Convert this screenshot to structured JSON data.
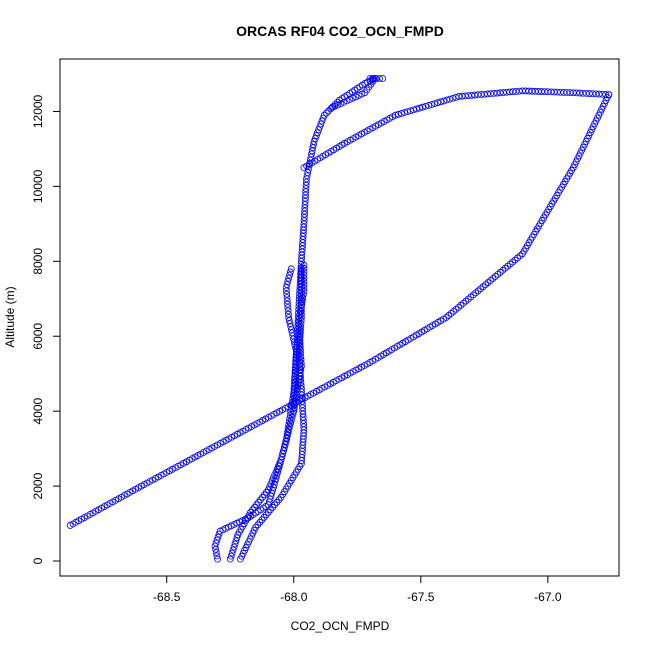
{
  "chart_data": {
    "type": "scatter",
    "title": "ORCAS RF04 CO2_OCN_FMPD",
    "xlabel": "CO2_OCN_FMPD",
    "ylabel": "Altitude (m)",
    "xlim": [
      -68.92,
      -66.72
    ],
    "ylim": [
      -400,
      13400
    ],
    "xticks": [
      -68.5,
      -68.0,
      -67.5,
      -67.0
    ],
    "xtick_labels": [
      "-68.5",
      "-68.0",
      "-67.5",
      "-67.0"
    ],
    "yticks": [
      0,
      2000,
      4000,
      6000,
      8000,
      10000,
      12000
    ],
    "ytick_labels": [
      "0",
      "2000",
      "4000",
      "6000",
      "8000",
      "10000",
      "12000"
    ],
    "grid": false,
    "legend": "none",
    "marker": "open-circle",
    "color": "#0000ff",
    "series": [
      {
        "values": [
          [
            -68.88,
            950
          ],
          [
            -68.6,
            2000
          ],
          [
            -68.3,
            3100
          ],
          [
            -68.0,
            4200
          ],
          [
            -67.7,
            5300
          ],
          [
            -67.4,
            6500
          ],
          [
            -67.1,
            8200
          ],
          [
            -66.9,
            10500
          ],
          [
            -66.76,
            12450
          ]
        ]
      },
      {
        "values": [
          [
            -66.76,
            12450
          ],
          [
            -66.9,
            12500
          ],
          [
            -67.1,
            12550
          ],
          [
            -67.35,
            12400
          ],
          [
            -67.6,
            11900
          ],
          [
            -67.8,
            11150
          ],
          [
            -67.96,
            10500
          ]
        ]
      },
      {
        "values": [
          [
            -68.3,
            50
          ],
          [
            -68.31,
            400
          ],
          [
            -68.29,
            800
          ],
          [
            -68.18,
            1150
          ],
          [
            -68.1,
            1500
          ],
          [
            -68.07,
            2200
          ],
          [
            -68.03,
            3200
          ],
          [
            -68.0,
            4500
          ],
          [
            -67.99,
            5600
          ],
          [
            -68.02,
            6500
          ],
          [
            -68.03,
            7300
          ],
          [
            -68.01,
            7800
          ]
        ]
      },
      {
        "values": [
          [
            -68.25,
            50
          ],
          [
            -68.22,
            700
          ],
          [
            -68.17,
            1300
          ],
          [
            -68.1,
            1900
          ],
          [
            -68.05,
            2700
          ],
          [
            -68.0,
            4000
          ],
          [
            -67.97,
            5200
          ],
          [
            -67.98,
            6400
          ],
          [
            -67.96,
            7200
          ],
          [
            -67.96,
            7900
          ]
        ]
      },
      {
        "values": [
          [
            -68.21,
            50
          ],
          [
            -68.15,
            900
          ],
          [
            -68.05,
            1700
          ],
          [
            -67.97,
            2600
          ],
          [
            -67.96,
            3500
          ],
          [
            -67.97,
            4600
          ],
          [
            -67.98,
            5500
          ],
          [
            -67.97,
            6500
          ],
          [
            -67.97,
            7400
          ],
          [
            -67.97,
            7800
          ]
        ]
      },
      {
        "values": [
          [
            -68.0,
            4000
          ],
          [
            -67.99,
            5400
          ],
          [
            -67.98,
            6800
          ],
          [
            -67.97,
            8000
          ],
          [
            -67.96,
            9000
          ],
          [
            -67.95,
            10200
          ],
          [
            -67.92,
            11200
          ],
          [
            -67.88,
            11900
          ],
          [
            -67.82,
            12300
          ],
          [
            -67.72,
            12750
          ],
          [
            -67.68,
            12880
          ]
        ]
      },
      {
        "values": [
          [
            -67.85,
            12100
          ],
          [
            -67.72,
            12500
          ],
          [
            -67.68,
            12880
          ],
          [
            -67.7,
            12880
          ],
          [
            -67.65,
            12880
          ]
        ]
      }
    ]
  }
}
